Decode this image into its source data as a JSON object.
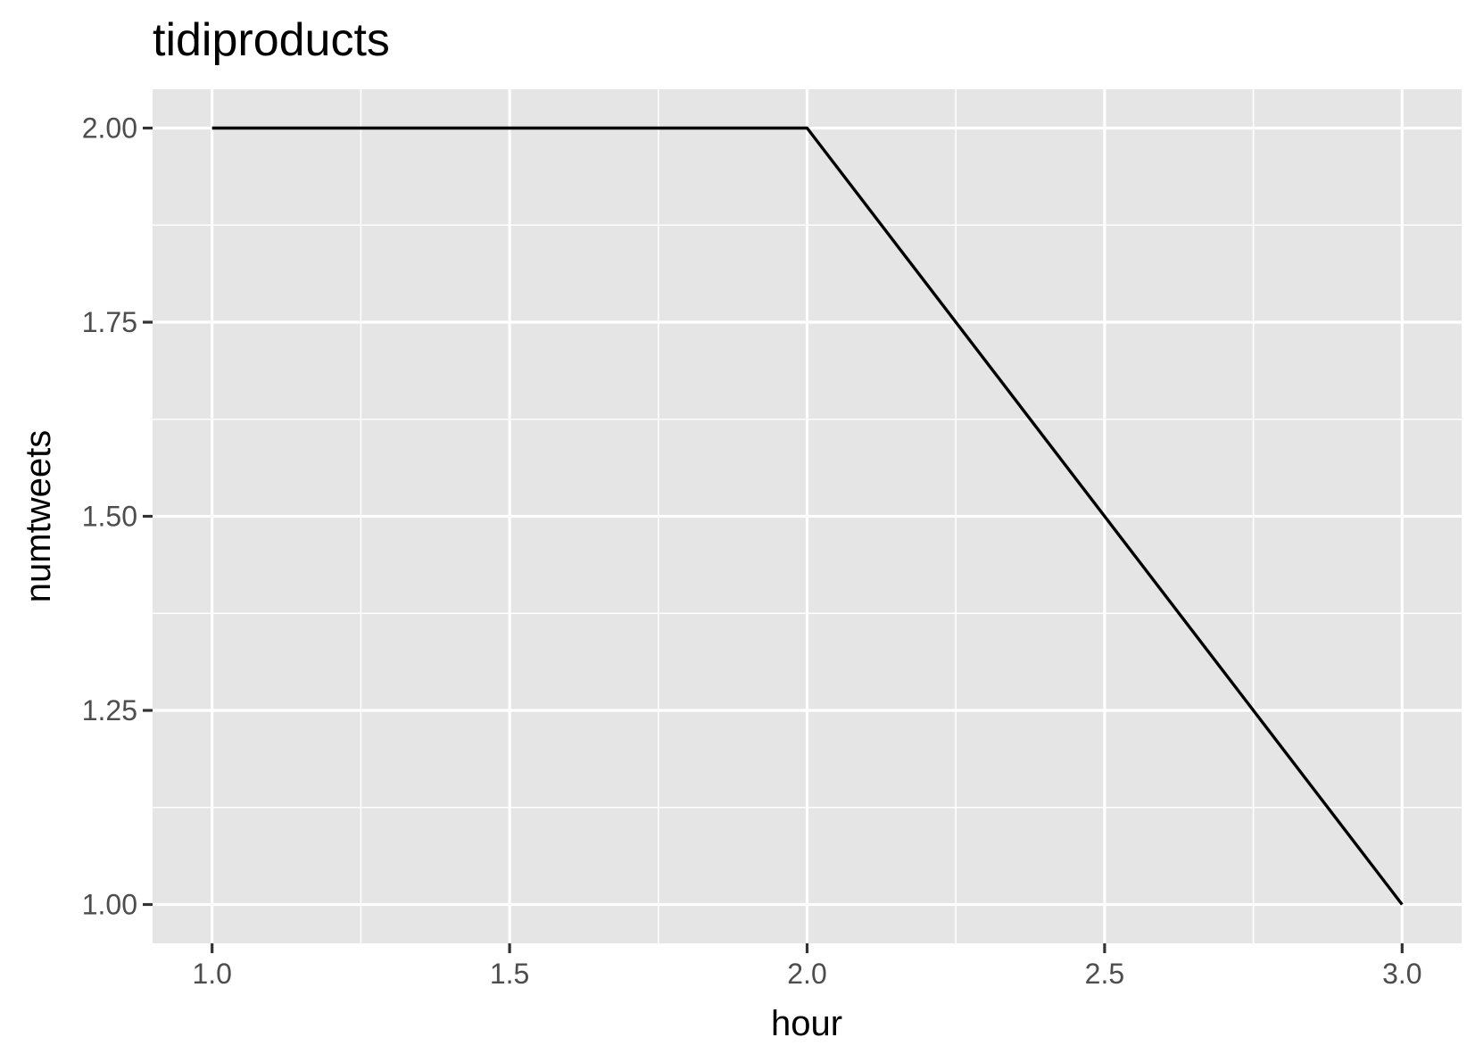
{
  "chart_data": {
    "type": "line",
    "title": "tidiproducts",
    "xlabel": "hour",
    "ylabel": "numtweets",
    "x": [
      1,
      2,
      3
    ],
    "series": [
      {
        "values": [
          2,
          2,
          1
        ]
      }
    ],
    "xlim": [
      0.9,
      3.1
    ],
    "ylim": [
      0.95,
      2.05
    ],
    "x_ticks": [
      1.0,
      1.5,
      2.0,
      2.5,
      3.0
    ],
    "x_tick_labels": [
      "1.0",
      "1.5",
      "2.0",
      "2.5",
      "3.0"
    ],
    "x_minor_ticks": [
      1.25,
      1.75,
      2.25,
      2.75
    ],
    "y_ticks": [
      1.0,
      1.25,
      1.5,
      1.75,
      2.0
    ],
    "y_tick_labels": [
      "1.00",
      "1.25",
      "1.50",
      "1.75",
      "2.00"
    ],
    "y_minor_ticks": [
      1.125,
      1.375,
      1.625,
      1.875
    ],
    "grid": true,
    "legend": "none",
    "colors": {
      "panel_background": "#e5e5e5",
      "grid_line": "#ffffff",
      "series_line": "#000000",
      "tick_label": "#4d4d4d",
      "tick_mark": "#333333"
    }
  }
}
